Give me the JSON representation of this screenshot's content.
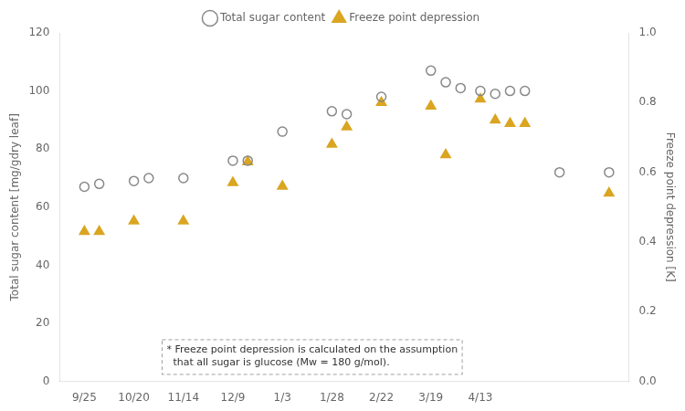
{
  "chart_data": {
    "type": "scatter",
    "xlabel_ticks_note_free": true,
    "ylabel": "Total sugar content [mg/gdry leaf]",
    "y2label": "Freeze point depression [K]",
    "xlim": [
      -0.5,
      11.0
    ],
    "xticks": [
      {
        "value": 0,
        "label": "9/25"
      },
      {
        "value": 1,
        "label": "10/20"
      },
      {
        "value": 2,
        "label": "11/14"
      },
      {
        "value": 3,
        "label": "12/9"
      },
      {
        "value": 4,
        "label": "1/3"
      },
      {
        "value": 5,
        "label": "1/28"
      },
      {
        "value": 6,
        "label": "2/22"
      },
      {
        "value": 7,
        "label": "3/19"
      },
      {
        "value": 8,
        "label": "4/13"
      }
    ],
    "ylim": [
      0,
      120
    ],
    "yticks": [
      0,
      20,
      40,
      60,
      80,
      100,
      120
    ],
    "y2lim": [
      0,
      1.0
    ],
    "y2ticks": [
      {
        "value": 0,
        "label": "0.0"
      },
      0.2,
      0.4,
      0.6,
      0.8,
      {
        "value": 1.0,
        "label": "1.0"
      }
    ],
    "grid": false,
    "legend": "top",
    "annotation": "* Freeze point depression is calculated on the assumption\n  that all sugar is glucose (Mw = 180 g/mol).",
    "series": [
      {
        "name": "Total sugar content",
        "color": "#888888",
        "marker": "open_circle",
        "axis": "y",
        "x": [
          0,
          0.3,
          1,
          1.3,
          2,
          3,
          3.3,
          4,
          5,
          5.3,
          6,
          7,
          7.3,
          7.6,
          8,
          8.3,
          8.6,
          8.9,
          9.6,
          10.6
        ],
        "values": [
          67,
          68,
          69,
          70,
          70,
          76,
          76,
          86,
          93,
          92,
          98,
          107,
          103,
          101,
          100,
          99,
          100,
          100,
          72,
          72
        ]
      },
      {
        "name": "Freeze point depression",
        "color": "#DAA520",
        "marker": "triangle",
        "axis": "y2",
        "x": [
          0,
          0.3,
          1,
          2,
          3,
          3.3,
          4,
          5,
          5.3,
          6,
          7,
          7.3,
          8,
          8.3,
          8.6,
          8.9,
          10.6
        ],
        "values": [
          0.43,
          0.43,
          0.46,
          0.46,
          0.57,
          0.63,
          0.56,
          0.68,
          0.73,
          0.8,
          0.79,
          0.65,
          0.81,
          0.75,
          0.74,
          0.74,
          0.54
        ]
      }
    ]
  }
}
